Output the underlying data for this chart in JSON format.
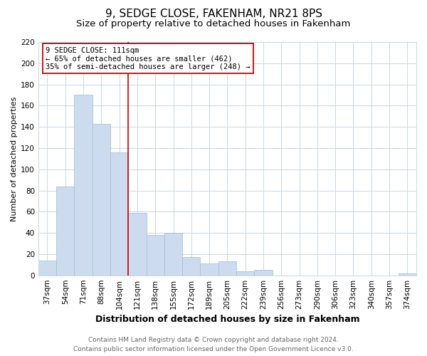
{
  "title": "9, SEDGE CLOSE, FAKENHAM, NR21 8PS",
  "subtitle": "Size of property relative to detached houses in Fakenham",
  "xlabel": "Distribution of detached houses by size in Fakenham",
  "ylabel": "Number of detached properties",
  "categories": [
    "37sqm",
    "54sqm",
    "71sqm",
    "88sqm",
    "104sqm",
    "121sqm",
    "138sqm",
    "155sqm",
    "172sqm",
    "189sqm",
    "205sqm",
    "222sqm",
    "239sqm",
    "256sqm",
    "273sqm",
    "290sqm",
    "306sqm",
    "323sqm",
    "340sqm",
    "357sqm",
    "374sqm"
  ],
  "values": [
    14,
    84,
    170,
    143,
    116,
    59,
    38,
    40,
    17,
    11,
    13,
    4,
    5,
    0,
    0,
    0,
    0,
    0,
    0,
    0,
    2
  ],
  "bar_color": "#ccdcee",
  "bar_edge_color": "#a0bcd8",
  "vline_x": 4.5,
  "vline_color": "#cc0000",
  "annotation_line1": "9 SEDGE CLOSE: 111sqm",
  "annotation_line2": "← 65% of detached houses are smaller (462)",
  "annotation_line3": "35% of semi-detached houses are larger (248) →",
  "annotation_box_color": "#ffffff",
  "annotation_box_edge_color": "#cc0000",
  "ylim": [
    0,
    220
  ],
  "yticks": [
    0,
    20,
    40,
    60,
    80,
    100,
    120,
    140,
    160,
    180,
    200,
    220
  ],
  "footer_line1": "Contains HM Land Registry data © Crown copyright and database right 2024.",
  "footer_line2": "Contains public sector information licensed under the Open Government Licence v3.0.",
  "title_fontsize": 11,
  "subtitle_fontsize": 9.5,
  "xlabel_fontsize": 9,
  "ylabel_fontsize": 8,
  "tick_fontsize": 7.5,
  "annotation_fontsize": 7.5,
  "footer_fontsize": 6.5,
  "background_color": "#ffffff",
  "plot_background_color": "#ffffff",
  "grid_color": "#c8d8e8"
}
